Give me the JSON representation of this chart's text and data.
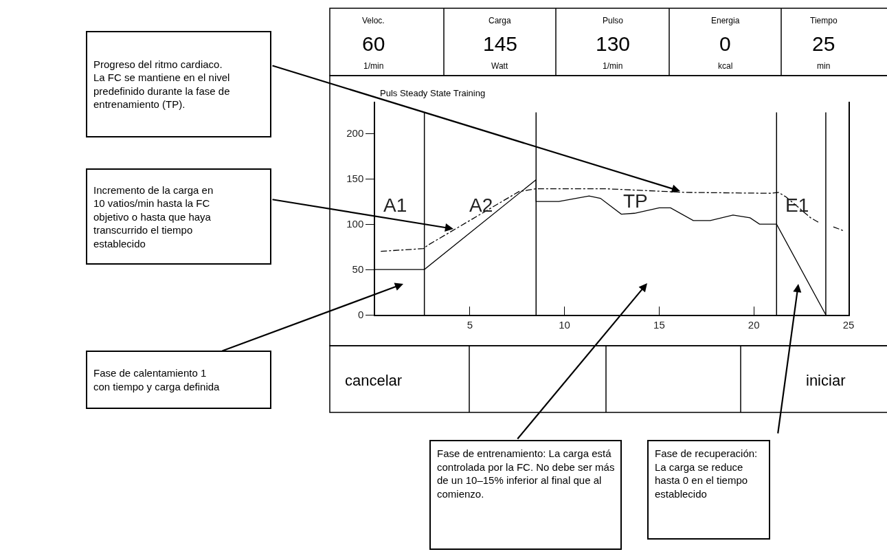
{
  "chart_data": {
    "type": "line",
    "title": "Puls Steady State Training",
    "series": [
      {
        "color": "#000000",
        "line_style": "solid",
        "x": [
          0,
          2.6,
          8.5,
          8.5,
          9.7,
          11.3,
          11.9,
          13.0,
          13.7,
          15.0,
          15.6,
          16.8,
          17.7,
          18.9,
          19.8,
          20.3,
          21.2,
          23.8
        ],
        "values": [
          50,
          50,
          149,
          125,
          125,
          131,
          128.5,
          111,
          112,
          118,
          118,
          104,
          104,
          110,
          107,
          100,
          100,
          0
        ]
      },
      {
        "color": "#000000",
        "line_style": "dashdot",
        "x": [
          0.3,
          2.55,
          2.8,
          7.6,
          8.5,
          12.2,
          16.4,
          20.9,
          21.3,
          21.7,
          23.0,
          23.5,
          null,
          24.2,
          24.7
        ],
        "values": [
          70,
          73,
          77,
          136,
          139,
          139,
          135,
          134,
          135,
          130,
          107,
          101,
          null,
          97,
          93
        ]
      }
    ],
    "xlim": [
      0,
      25
    ],
    "ylim": [
      0,
      235
    ],
    "xticks": [
      5,
      10,
      15,
      20,
      25
    ],
    "yticks": [
      0,
      50,
      100,
      150,
      200
    ],
    "marker": "none",
    "ref_lines": [
      {
        "axis": "x",
        "value": 2.6
      },
      {
        "axis": "x",
        "value": 8.5
      },
      {
        "axis": "x",
        "value": 21.2
      },
      {
        "axis": "x",
        "value": 23.8
      }
    ],
    "annotations": [
      "Veloc.",
      "60",
      "1/min",
      "Carga",
      "145",
      "Watt",
      "Pulso",
      "130",
      "1/min",
      "Energia",
      "0",
      "kcal",
      "Tiempo",
      "25",
      "min",
      "cancelar",
      "iniciar",
      "Progreso del ritmo cardiaco.\nLa FC se mantiene en el nivel\npredefinido durante la fase de\nentrenamiento (TP).",
      "Incremento de la carga en\n10 vatios/min hasta la FC\nobjetivo o hasta que haya\ntranscurrido el tiempo\nestablecido",
      "Fase de calentamiento 1\ncon tiempo y carga definida",
      "Fase de entrenamiento: La carga está\ncontrolada por la FC. No debe ser más\nde un 10–15% inferior al final que al\ncomienzo.",
      "Fase de recuperación:\nLa carga se reduce\nhasta 0 en el tiempo\nestablecido",
      "A1",
      "A2",
      "TP",
      "E1"
    ]
  }
}
